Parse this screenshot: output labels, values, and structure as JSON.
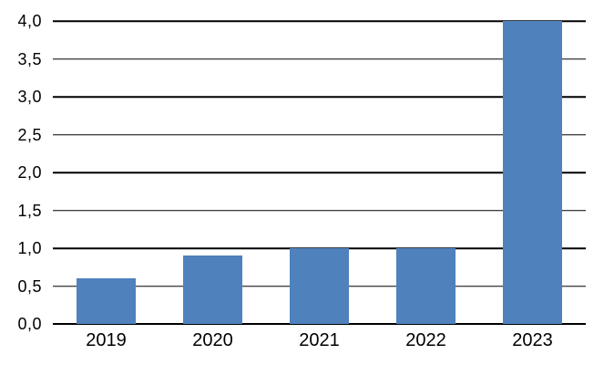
{
  "chart_data": {
    "type": "bar",
    "title": "",
    "xlabel": "",
    "ylabel": "",
    "categories": [
      "2019",
      "2020",
      "2021",
      "2022",
      "2023"
    ],
    "values": [
      0.6,
      0.9,
      1.0,
      1.0,
      4.0
    ],
    "ylim": [
      0,
      4
    ],
    "ytick_step": 0.5,
    "yticks": [
      {
        "value": 0.0,
        "label": "0,0"
      },
      {
        "value": 0.5,
        "label": "0,5"
      },
      {
        "value": 1.0,
        "label": "1,0"
      },
      {
        "value": 1.5,
        "label": "1,5"
      },
      {
        "value": 2.0,
        "label": "2,0"
      },
      {
        "value": 2.5,
        "label": "2,5"
      },
      {
        "value": 3.0,
        "label": "3,0"
      },
      {
        "value": 3.5,
        "label": "3,5"
      },
      {
        "value": 4.0,
        "label": "4,0"
      }
    ],
    "decimal_separator": ",",
    "grid": true,
    "legend": "none",
    "colors": {
      "bar": "#4f81bd",
      "gridline": "#000000",
      "axis": "#000000",
      "background": "#ffffff",
      "text": "#000000"
    }
  }
}
